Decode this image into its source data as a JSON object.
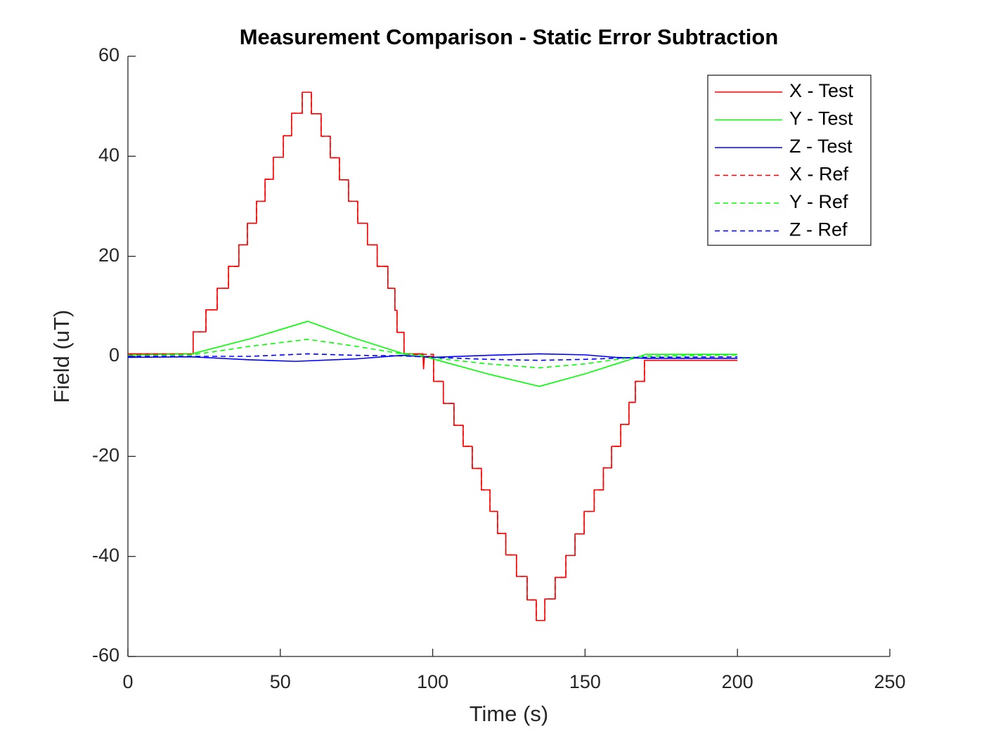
{
  "chart_data": {
    "type": "line",
    "title": "Measurement Comparison - Static Error Subtraction",
    "x_label": "Time (s)",
    "y_label": "Field (uT)",
    "xlim": [
      0,
      250
    ],
    "xticks": [
      0,
      50,
      100,
      150,
      200,
      250
    ],
    "ylim": [
      -60,
      60
    ],
    "yticks": [
      -60,
      -40,
      -20,
      0,
      20,
      40,
      60
    ],
    "grid": false,
    "legend_location": "northeast",
    "series": [
      {
        "name": "X - Test",
        "color": "#ff0000",
        "line_style": "solid",
        "x": [
          0,
          21.4,
          21.4,
          25.6,
          25.6,
          29.3,
          29.3,
          33,
          33,
          36.4,
          36.4,
          39.2,
          39.2,
          42.2,
          42.2,
          45,
          45,
          47.7,
          47.7,
          51,
          51,
          53.7,
          53.7,
          57.2,
          57.2,
          60.2,
          60.2,
          63.4,
          63.4,
          66.4,
          66.4,
          69.4,
          69.4,
          72.4,
          72.4,
          75.4,
          75.4,
          78.6,
          78.6,
          81.8,
          81.8,
          85.3,
          85.3,
          87.6,
          87.6,
          88.3,
          88.3,
          90.6,
          90.6,
          96.8,
          97,
          97.3,
          100.3,
          100.3,
          103.5,
          103.5,
          107,
          107,
          110,
          110,
          113,
          113,
          116,
          116,
          118.8,
          118.8,
          121.3,
          121.3,
          124,
          124,
          127.5,
          127.5,
          131,
          131,
          134,
          134,
          136.8,
          136.8,
          140.2,
          140.2,
          143.7,
          143.7,
          146.7,
          146.7,
          149.7,
          149.7,
          153,
          153,
          156,
          156,
          158.7,
          158.7,
          161.7,
          161.7,
          164.4,
          164.4,
          166.5,
          166.5,
          169.5,
          169.5,
          200
        ],
        "values": [
          0.5,
          0.5,
          4.9,
          4.9,
          9.3,
          9.3,
          13.6,
          13.6,
          18,
          18,
          22.3,
          22.3,
          26.6,
          26.6,
          31,
          31,
          35.4,
          35.4,
          39.8,
          39.8,
          44.1,
          44.1,
          48.6,
          48.6,
          52.8,
          52.8,
          48.5,
          48.5,
          44,
          44,
          39.7,
          39.7,
          35.3,
          35.3,
          31,
          31,
          26.6,
          26.6,
          22.3,
          22.3,
          18,
          18,
          13.6,
          13.6,
          9.2,
          9.2,
          4.8,
          4.8,
          0.5,
          0.5,
          -2.5,
          0,
          0,
          -5,
          -5,
          -9.4,
          -9.4,
          -13.8,
          -13.8,
          -18,
          -18,
          -22.4,
          -22.4,
          -26.7,
          -26.7,
          -31,
          -31,
          -35.4,
          -35.4,
          -39.7,
          -39.7,
          -44,
          -44,
          -48.7,
          -48.7,
          -52.8,
          -52.8,
          -48.5,
          -48.5,
          -44.2,
          -44.2,
          -39.8,
          -39.8,
          -35.5,
          -35.5,
          -31,
          -31,
          -26.7,
          -26.7,
          -22.3,
          -22.3,
          -18,
          -18,
          -13.6,
          -13.6,
          -9.2,
          -9.2,
          -5,
          -5,
          -0.8,
          -0.8
        ]
      },
      {
        "name": "Y - Test",
        "color": "#00ff00",
        "line_style": "solid",
        "x": [
          0,
          21,
          40,
          59,
          75,
          90,
          96,
          100,
          118,
          135,
          150,
          168,
          170,
          200
        ],
        "values": [
          0.3,
          0.5,
          3.5,
          7,
          3.5,
          0.6,
          0.3,
          -0.5,
          -3.5,
          -6,
          -3.5,
          0,
          0.4,
          0.4
        ]
      },
      {
        "name": "Z - Test",
        "color": "#0000ff",
        "line_style": "solid",
        "x": [
          0,
          21,
          40,
          55,
          75,
          90,
          100,
          118,
          135,
          150,
          160,
          170,
          200
        ],
        "values": [
          -0.2,
          -0.1,
          -0.7,
          -1,
          -0.5,
          0.2,
          -0.2,
          0.2,
          0.5,
          0.3,
          -0.2,
          -0.4,
          -0.4
        ]
      },
      {
        "name": "X - Ref",
        "color": "#ff0000",
        "line_style": "dashed",
        "x": [
          0,
          21.4,
          21.4,
          25.6,
          25.6,
          29.3,
          29.3,
          33,
          33,
          36.4,
          36.4,
          39.2,
          39.2,
          42.2,
          42.2,
          45,
          45,
          47.7,
          47.7,
          51,
          51,
          53.7,
          53.7,
          57.2,
          57.2,
          60.2,
          60.2,
          63.4,
          63.4,
          66.4,
          66.4,
          69.4,
          69.4,
          72.4,
          72.4,
          75.4,
          75.4,
          78.6,
          78.6,
          81.8,
          81.8,
          85.3,
          85.3,
          87.6,
          87.6,
          88.3,
          88.3,
          90.6,
          90.6,
          100.3,
          100.3,
          103.5,
          103.5,
          107,
          107,
          110,
          110,
          113,
          113,
          116,
          116,
          118.8,
          118.8,
          121.3,
          121.3,
          124,
          124,
          127.5,
          127.5,
          131,
          131,
          134,
          134,
          136.8,
          136.8,
          140.2,
          140.2,
          143.7,
          143.7,
          146.7,
          146.7,
          149.7,
          149.7,
          153,
          153,
          156,
          156,
          158.7,
          158.7,
          161.7,
          161.7,
          164.4,
          164.4,
          166.5,
          166.5,
          169.5,
          169.5,
          200
        ],
        "values": [
          0.4,
          0.4,
          4.9,
          4.9,
          9.3,
          9.3,
          13.6,
          13.6,
          18,
          18,
          22.3,
          22.3,
          26.6,
          26.6,
          31,
          31,
          35.4,
          35.4,
          39.8,
          39.8,
          44.1,
          44.1,
          48.6,
          48.6,
          52.8,
          52.8,
          48.5,
          48.5,
          44,
          44,
          39.7,
          39.7,
          35.3,
          35.3,
          31,
          31,
          26.6,
          26.6,
          22.3,
          22.3,
          18,
          18,
          13.6,
          13.6,
          9.2,
          9.2,
          4.8,
          4.8,
          0.4,
          0.4,
          -5,
          -5,
          -9.4,
          -9.4,
          -13.8,
          -13.8,
          -18,
          -18,
          -22.4,
          -22.4,
          -26.7,
          -26.7,
          -31,
          -31,
          -35.4,
          -35.4,
          -39.7,
          -39.7,
          -44,
          -44,
          -48.7,
          -48.7,
          -52.8,
          -52.8,
          -48.5,
          -48.5,
          -44.2,
          -44.2,
          -39.8,
          -39.8,
          -35.5,
          -35.5,
          -31,
          -31,
          -26.7,
          -26.7,
          -22.3,
          -22.3,
          -18,
          -18,
          -13.6,
          -13.6,
          -9.2,
          -9.2,
          -5,
          -5,
          -0.8,
          -0.8
        ]
      },
      {
        "name": "Y - Ref",
        "color": "#00ff00",
        "line_style": "dashed",
        "x": [
          0,
          21,
          40,
          59,
          75,
          90,
          100,
          118,
          135,
          150,
          168,
          200
        ],
        "values": [
          0.2,
          0.3,
          2,
          3.4,
          2,
          0.5,
          -0.3,
          -1.5,
          -2.3,
          -1.5,
          0,
          0.3
        ]
      },
      {
        "name": "Z - Ref",
        "color": "#0000ff",
        "line_style": "dashed",
        "x": [
          0,
          21,
          40,
          59,
          75,
          90,
          100,
          118,
          135,
          150,
          168,
          200
        ],
        "values": [
          0,
          0,
          0,
          0.5,
          0.2,
          0.1,
          -0.2,
          -0.6,
          -0.8,
          -0.6,
          -0.2,
          -0.1
        ]
      }
    ]
  }
}
